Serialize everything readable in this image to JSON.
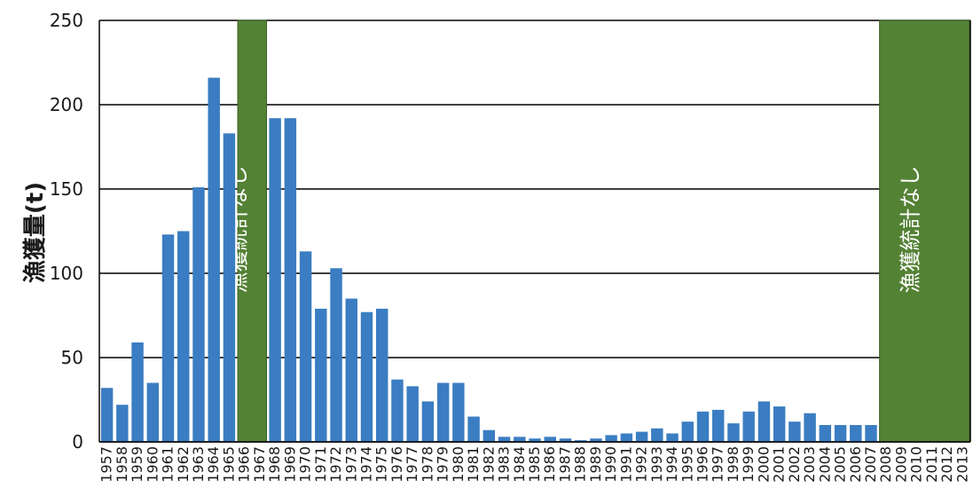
{
  "chart_data": {
    "type": "bar",
    "title": "",
    "xlabel": "",
    "ylabel": "漁獲量(t)",
    "ylim": [
      0,
      250
    ],
    "yticks": [
      0,
      50,
      100,
      150,
      200,
      250
    ],
    "grid": true,
    "colors": {
      "bar": "#3a7dc2",
      "band": "#548235",
      "grid": "#000000"
    },
    "categories": [
      "1957",
      "1958",
      "1959",
      "1960",
      "1961",
      "1962",
      "1963",
      "1964",
      "1965",
      "1966",
      "1967",
      "1968",
      "1969",
      "1970",
      "1971",
      "1972",
      "1973",
      "1974",
      "1975",
      "1976",
      "1977",
      "1978",
      "1979",
      "1980",
      "1981",
      "1982",
      "1983",
      "1984",
      "1985",
      "1986",
      "1987",
      "1988",
      "1989",
      "1990",
      "1991",
      "1992",
      "1993",
      "1994",
      "1995",
      "1996",
      "1997",
      "1998",
      "1999",
      "2000",
      "2001",
      "2002",
      "2003",
      "2004",
      "2005",
      "2006",
      "2007",
      "2008",
      "2009",
      "2010",
      "2011",
      "2012",
      "2013"
    ],
    "values": [
      32,
      22,
      59,
      35,
      123,
      125,
      151,
      216,
      183,
      null,
      null,
      192,
      192,
      113,
      79,
      103,
      85,
      77,
      79,
      37,
      33,
      24,
      35,
      35,
      15,
      7,
      3,
      3,
      2,
      3,
      2,
      1,
      2,
      4,
      5,
      6,
      8,
      5,
      12,
      18,
      19,
      11,
      18,
      24,
      21,
      12,
      17,
      10,
      10,
      10,
      10,
      null,
      null,
      null,
      null,
      null,
      null
    ],
    "annotations": [
      {
        "text": "漁獲統計なし",
        "from": "1966",
        "to": "1967"
      },
      {
        "text": "漁獲統計なし",
        "from": "2008",
        "to": "2013"
      }
    ]
  }
}
